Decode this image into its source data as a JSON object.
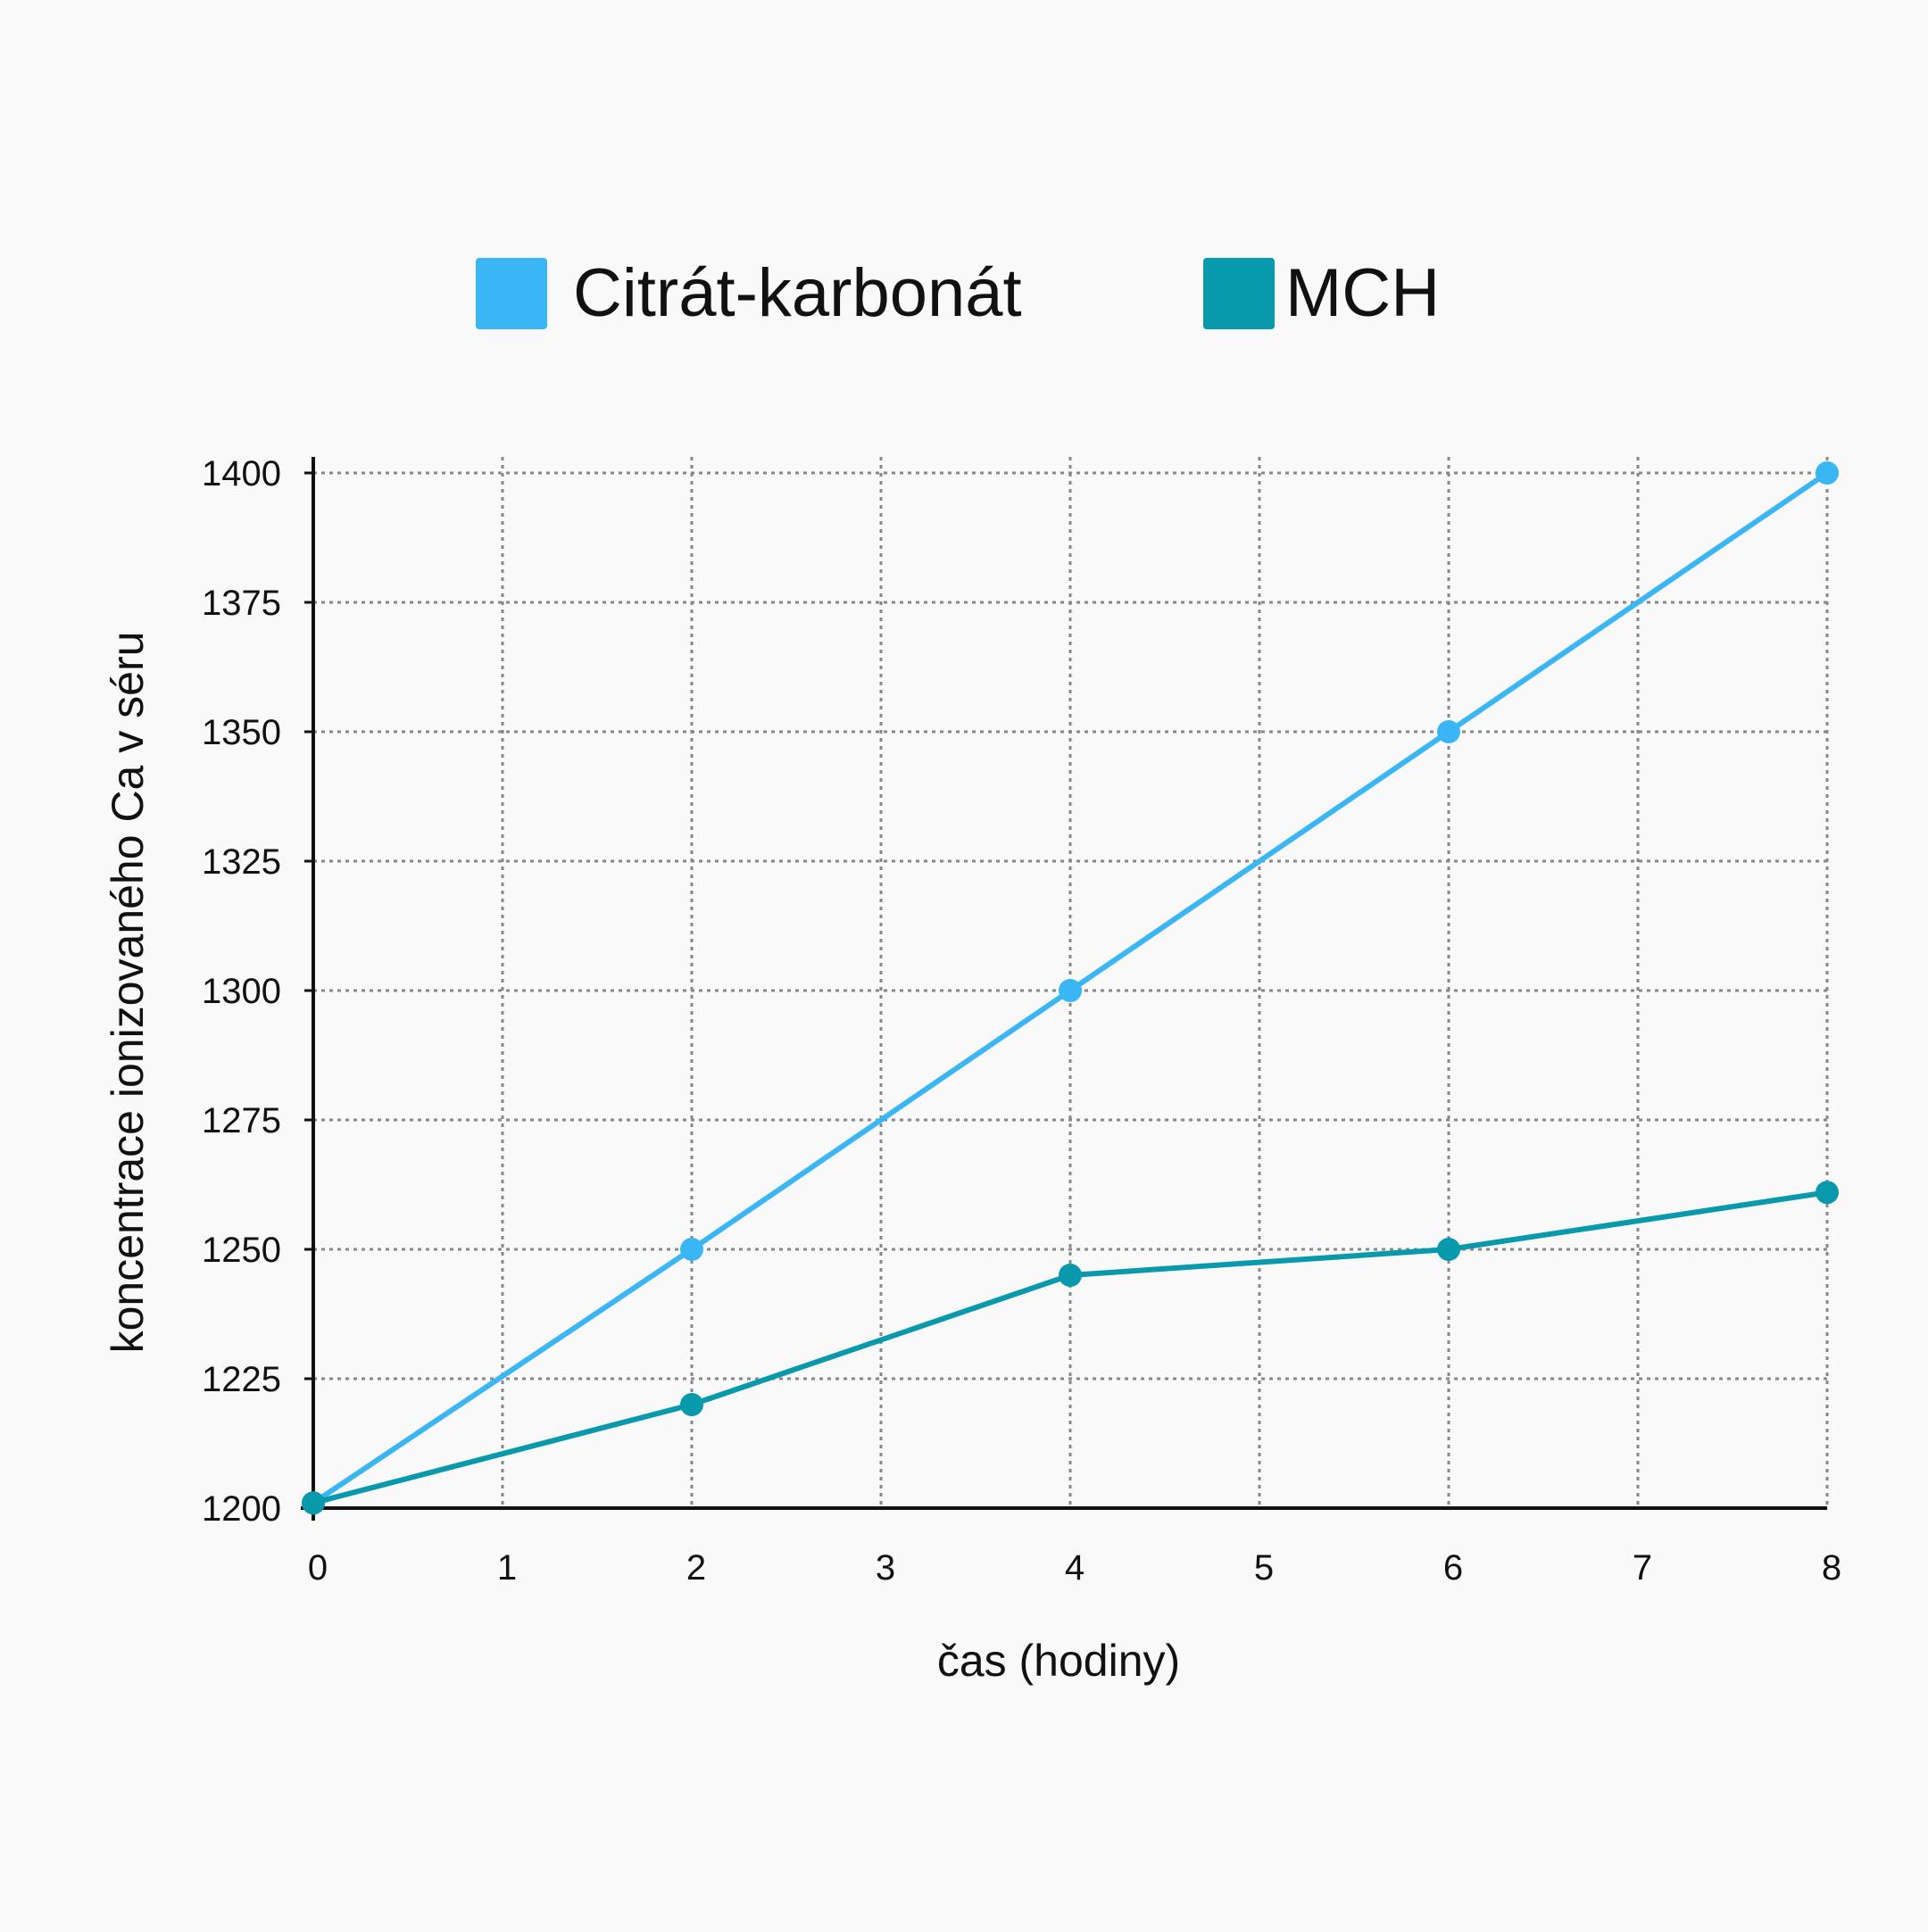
{
  "chart_data": {
    "type": "line",
    "title": "",
    "xlabel": "čas (hodiny)",
    "ylabel": "koncentrace ionizovaného Ca v séru",
    "x_ticks": [
      0,
      1,
      2,
      3,
      4,
      5,
      6,
      7,
      8
    ],
    "y_ticks": [
      1200,
      1225,
      1250,
      1275,
      1300,
      1325,
      1350,
      1375,
      1400
    ],
    "xlim": [
      0,
      8
    ],
    "ylim": [
      1200,
      1400
    ],
    "grid": true,
    "grid_style": "dotted",
    "legend_position": "top-center",
    "series": [
      {
        "name": "Citrát-karbonát",
        "color": "#3bb6f5",
        "x": [
          0,
          2,
          4,
          6,
          8
        ],
        "y": [
          1201,
          1250,
          1300,
          1350,
          1400
        ]
      },
      {
        "name": "MCH",
        "color": "#0899ad",
        "x": [
          0,
          2,
          4,
          6,
          8
        ],
        "y": [
          1201,
          1220,
          1245,
          1250,
          1261
        ]
      }
    ]
  }
}
